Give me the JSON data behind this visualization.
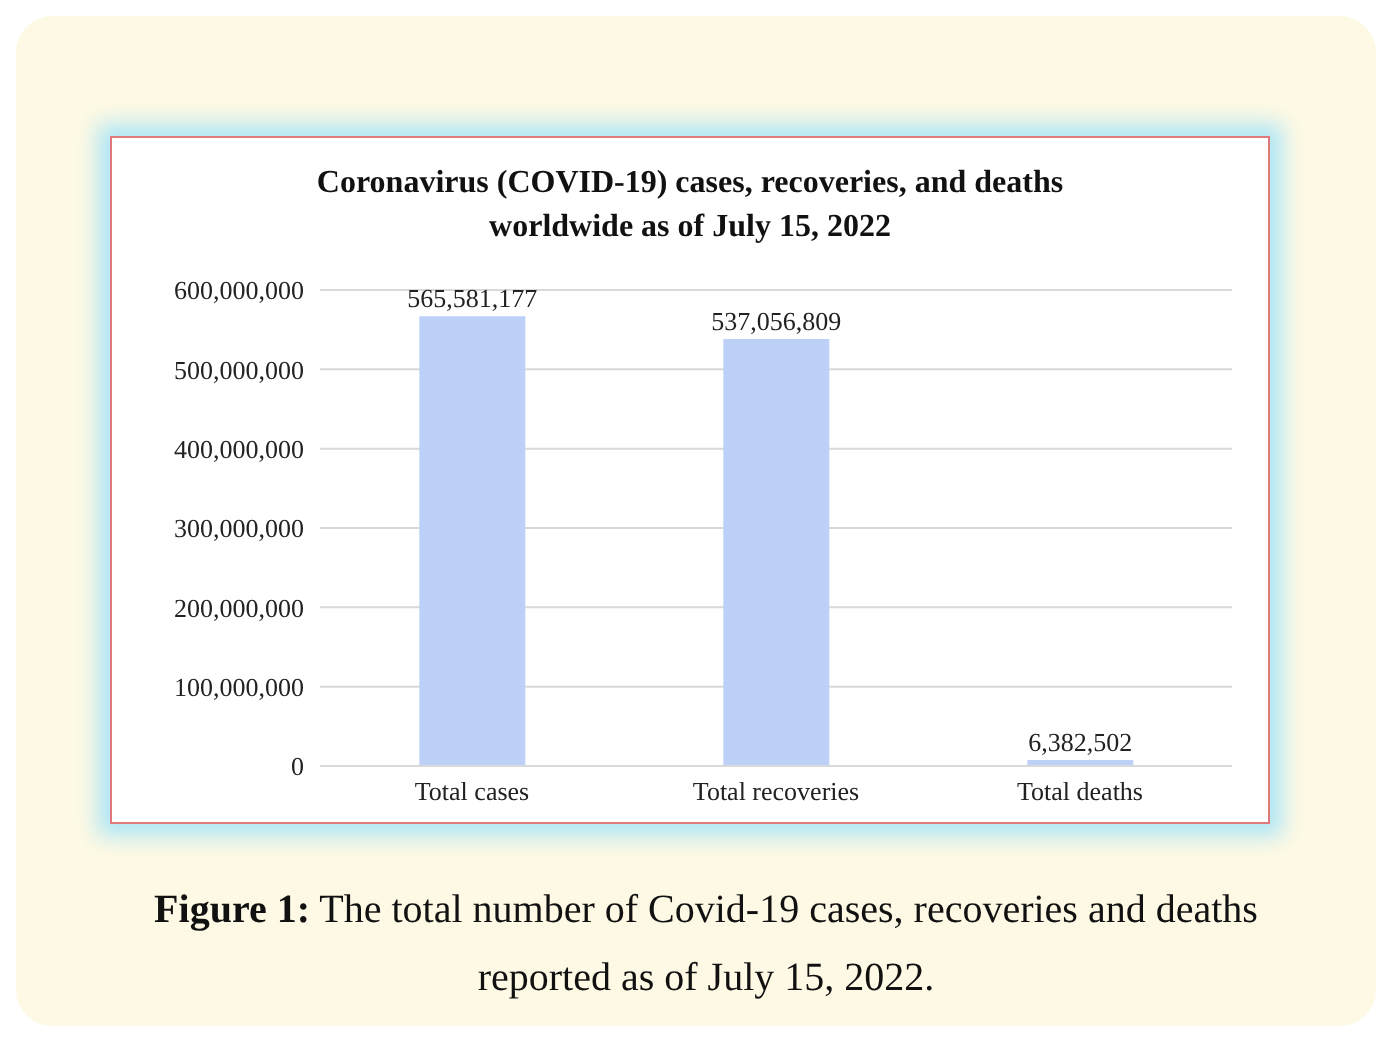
{
  "chart_data": {
    "type": "bar",
    "title": "Coronavirus (COVID-19) cases, recoveries, and deaths worldwide as of July 15, 2022",
    "categories": [
      "Total cases",
      "Total recoveries",
      "Total deaths"
    ],
    "values": [
      565581177,
      537056809,
      6382502
    ],
    "value_labels": [
      "565,581,177",
      "537,056,809",
      "6,382,502"
    ],
    "color": "#bcd0f8",
    "ylim": [
      0,
      600000000
    ],
    "yticks": [
      0,
      {
        "value": 100000000,
        "label": "100,000,000"
      },
      {
        "value": 200000000,
        "label": "200,000,000"
      },
      {
        "value": 300000000,
        "label": "300,000,000"
      },
      {
        "value": 400000000,
        "label": "400,000,000"
      },
      {
        "value": 500000000,
        "label": "500,000,000"
      },
      {
        "value": 600000000,
        "label": "600,000,000"
      }
    ],
    "grid": "y",
    "annotations": [
      "Figure 1: The total number of Covid-19 cases, recoveries and deaths reported as of July 15, 2022."
    ]
  }
}
